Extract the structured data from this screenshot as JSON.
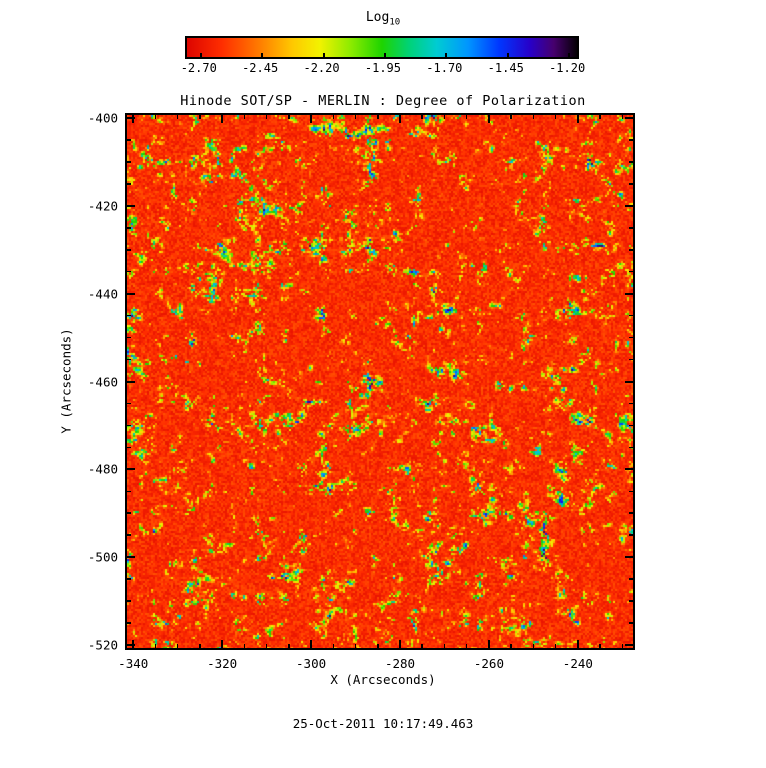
{
  "figure": {
    "background": "#ffffff",
    "text_color": "#000000"
  },
  "chart_data": {
    "type": "heatmap",
    "title": "Hinode SOT/SP - MERLIN : Degree of Polarization",
    "xlabel": "X (Arcseconds)",
    "ylabel": "Y (Arcseconds)",
    "caption": "25-Oct-2011 10:17:49.463",
    "x_range": [
      -341.4,
      -227.6
    ],
    "y_range": [
      -520.7,
      -399.3
    ],
    "x_ticks": [
      -340,
      -320,
      -300,
      -280,
      -260,
      -240
    ],
    "y_ticks": [
      -520,
      -500,
      -480,
      -460,
      -440,
      -420,
      -400
    ],
    "minor_tick_step": 5,
    "grid": false,
    "colorbar": {
      "label": "Log",
      "label_subscript": "10",
      "tick_labels": [
        "-2.70",
        "-2.45",
        "-2.20",
        "-1.95",
        "-1.70",
        "-1.45",
        "-1.20"
      ],
      "value_range": [
        -2.756,
        -1.168
      ],
      "position": "top"
    },
    "colormap": [
      {
        "t": 0.0,
        "c": "#dd0500"
      },
      {
        "t": 0.09,
        "c": "#ff2e00"
      },
      {
        "t": 0.18,
        "c": "#ff7700"
      },
      {
        "t": 0.27,
        "c": "#ffc800"
      },
      {
        "t": 0.34,
        "c": "#f2f200"
      },
      {
        "t": 0.42,
        "c": "#8ceb00"
      },
      {
        "t": 0.5,
        "c": "#1ed400"
      },
      {
        "t": 0.57,
        "c": "#00d278"
      },
      {
        "t": 0.64,
        "c": "#00ccd2"
      },
      {
        "t": 0.72,
        "c": "#0096ff"
      },
      {
        "t": 0.8,
        "c": "#0037ff"
      },
      {
        "t": 0.88,
        "c": "#2800c8"
      },
      {
        "t": 0.94,
        "c": "#46006e"
      },
      {
        "t": 1.0,
        "c": "#050005"
      }
    ],
    "field": {
      "description": "Quiet-Sun degree-of-polarization map: background mostly near -2.7 (red/orange granular speckle) with a reticulated network of slightly higher polarization (yellow/green patches) and sparse strong patches reaching about -1.5 to -1.3 (cyan/blue cores)"
    }
  }
}
